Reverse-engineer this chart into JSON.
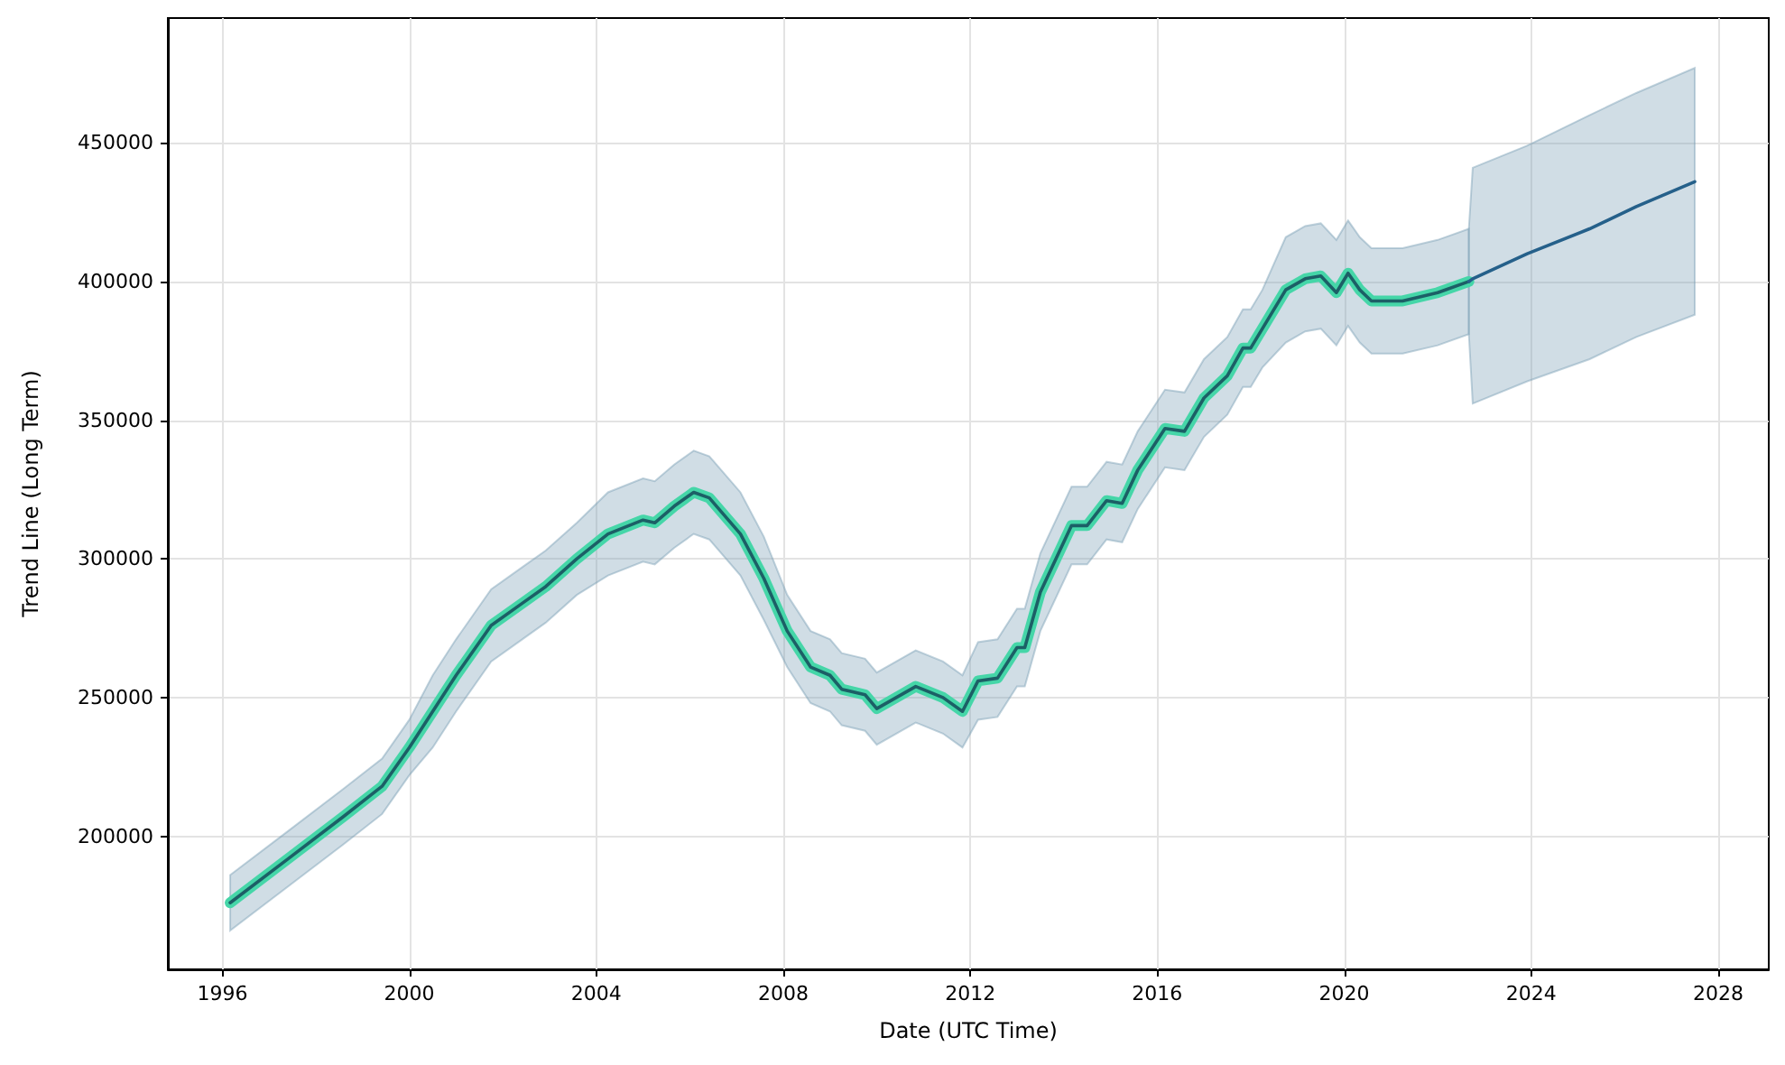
{
  "chart_data": {
    "type": "line",
    "xlabel": "Date (UTC Time)",
    "ylabel": "Trend Line (Long Term)",
    "x": [
      "1996-03",
      "1997-06",
      "1998-08",
      "1999-06",
      "2000-01",
      "2000-07",
      "2001-01",
      "2001-10",
      "2002-06",
      "2002-12",
      "2003-08",
      "2004-04",
      "2005-01",
      "2005-04",
      "2005-09",
      "2006-02",
      "2006-06",
      "2007-02",
      "2007-08",
      "2008-02",
      "2008-08",
      "2009-01",
      "2009-04",
      "2009-10",
      "2010-01",
      "2010-11",
      "2011-06",
      "2011-11",
      "2012-03",
      "2012-08",
      "2013-01",
      "2013-03",
      "2013-07",
      "2014-03",
      "2014-07",
      "2014-12",
      "2015-04",
      "2015-08",
      "2016-03",
      "2016-08",
      "2017-01",
      "2017-07",
      "2017-11",
      "2018-01",
      "2018-04",
      "2018-10",
      "2019-03",
      "2019-07",
      "2019-11",
      "2020-02",
      "2020-05",
      "2020-08",
      "2021-04",
      "2022-01",
      "2022-09"
    ],
    "series": [
      {
        "color": "#45d6a8",
        "values": [
          176000,
          192000,
          207000,
          218000,
          232000,
          245000,
          258000,
          276000,
          284000,
          290000,
          300000,
          309000,
          314000,
          313000,
          319000,
          324000,
          322000,
          309000,
          293000,
          274000,
          261000,
          258000,
          253000,
          251000,
          246000,
          254000,
          250000,
          245000,
          256000,
          257000,
          268000,
          268000,
          288000,
          312000,
          312000,
          321000,
          320000,
          332000,
          347000,
          346000,
          358000,
          366000,
          376000,
          376000,
          383000,
          397000,
          401000,
          402000,
          396000,
          403000,
          397000,
          393000,
          393000,
          396000,
          400000
        ]
      },
      {
        "color": "#1c5f66",
        "values": [
          176000,
          192000,
          207000,
          218000,
          232000,
          245000,
          258000,
          276000,
          284000,
          290000,
          300000,
          309000,
          314000,
          313000,
          319000,
          324000,
          322000,
          309000,
          293000,
          274000,
          261000,
          258000,
          253000,
          251000,
          246000,
          254000,
          250000,
          245000,
          256000,
          257000,
          268000,
          268000,
          288000,
          312000,
          312000,
          321000,
          320000,
          332000,
          347000,
          346000,
          358000,
          366000,
          376000,
          376000,
          383000,
          397000,
          401000,
          402000,
          396000,
          403000,
          397000,
          393000,
          393000,
          396000,
          400000
        ],
        "upper": [
          186000,
          202000,
          217000,
          228000,
          242000,
          258000,
          271000,
          289000,
          297000,
          303000,
          313000,
          324000,
          329000,
          328000,
          334000,
          339000,
          337000,
          324000,
          308000,
          287000,
          274000,
          271000,
          266000,
          264000,
          259000,
          267000,
          263000,
          258000,
          270000,
          271000,
          282000,
          282000,
          302000,
          326000,
          326000,
          335000,
          334000,
          346000,
          361000,
          360000,
          372000,
          380000,
          390000,
          390000,
          397000,
          416000,
          420000,
          421000,
          415000,
          422000,
          416000,
          412000,
          412000,
          415000,
          419000
        ],
        "lower": [
          166000,
          182000,
          197000,
          208000,
          222000,
          232000,
          245000,
          263000,
          271000,
          277000,
          287000,
          294000,
          299000,
          298000,
          304000,
          309000,
          307000,
          294000,
          278000,
          261000,
          248000,
          245000,
          240000,
          238000,
          233000,
          241000,
          237000,
          232000,
          242000,
          243000,
          254000,
          254000,
          274000,
          298000,
          298000,
          307000,
          306000,
          318000,
          333000,
          332000,
          344000,
          352000,
          362000,
          362000,
          369000,
          378000,
          382000,
          383000,
          377000,
          384000,
          378000,
          374000,
          374000,
          377000,
          381000
        ]
      },
      {
        "color": "#25608a",
        "x": [
          "2022-09",
          "2022-10",
          "2023-12",
          "2025-04",
          "2026-04",
          "2027-07"
        ],
        "values": [
          400000,
          401000,
          410000,
          419000,
          427000,
          436000
        ],
        "upper": [
          419000,
          441000,
          449000,
          460000,
          468000,
          477000
        ],
        "lower": [
          381000,
          356000,
          364000,
          372000,
          380000,
          388000
        ]
      }
    ],
    "xlim": [
      "1994-11",
      "2029-02"
    ],
    "xticks": [
      "1996",
      "2000",
      "2004",
      "2008",
      "2012",
      "2016",
      "2020",
      "2024",
      "2028"
    ],
    "ylim": [
      152000,
      495000
    ],
    "yticks": [
      200000,
      250000,
      300000,
      350000,
      400000,
      450000
    ],
    "grid": true,
    "line_style": "solid",
    "marker": "none"
  }
}
